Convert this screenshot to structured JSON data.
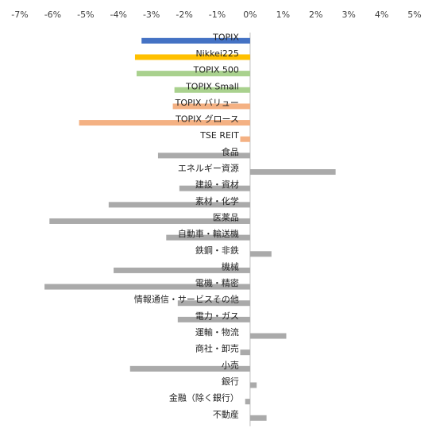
{
  "chart_data": {
    "type": "bar",
    "orientation": "horizontal",
    "xlim": [
      -7,
      5
    ],
    "x_ticks": [
      "-7%",
      "-6%",
      "-5%",
      "-4%",
      "-3%",
      "-2%",
      "-1%",
      "0%",
      "1%",
      "2%",
      "3%",
      "4%",
      "5%"
    ],
    "x_tick_values": [
      -7,
      -6,
      -5,
      -4,
      -3,
      -2,
      -1,
      0,
      1,
      2,
      3,
      4,
      5
    ],
    "x_axis_position": "top",
    "grid": false,
    "legend": "none",
    "categories": [
      "TOPIX",
      "Nikkei225",
      "TOPIX 500",
      "TOPIX Small",
      "TOPIX バリュー",
      "TOPIX グロース",
      "TSE REIT",
      "食品",
      "エネルギー資源",
      "建設・資材",
      "素材・化学",
      "医薬品",
      "自動車・輸送機",
      "鉄鋼・非鉄",
      "機械",
      "電機・精密",
      "情報通信・サービスその他",
      "電力・ガス",
      "運輸・物流",
      "商社・卸売",
      "小売",
      "銀行",
      "金融（除く銀行）",
      "不動産"
    ],
    "values": [
      -3.3,
      -3.5,
      -3.45,
      -2.3,
      -2.35,
      -5.2,
      -0.3,
      -2.8,
      2.6,
      -2.15,
      -4.3,
      -6.1,
      -2.55,
      0.65,
      -4.15,
      -6.25,
      -2.2,
      -2.2,
      1.1,
      -0.3,
      -3.65,
      0.2,
      -0.15,
      0.5
    ],
    "colors": [
      "#4472c4",
      "#ffc000",
      "#a9d18e",
      "#a9d18e",
      "#f4b183",
      "#f4b183",
      "#f4b183",
      "#aaaaaa",
      "#aaaaaa",
      "#aaaaaa",
      "#aaaaaa",
      "#aaaaaa",
      "#aaaaaa",
      "#aaaaaa",
      "#aaaaaa",
      "#aaaaaa",
      "#aaaaaa",
      "#aaaaaa",
      "#aaaaaa",
      "#aaaaaa",
      "#aaaaaa",
      "#aaaaaa",
      "#aaaaaa",
      "#aaaaaa"
    ]
  }
}
